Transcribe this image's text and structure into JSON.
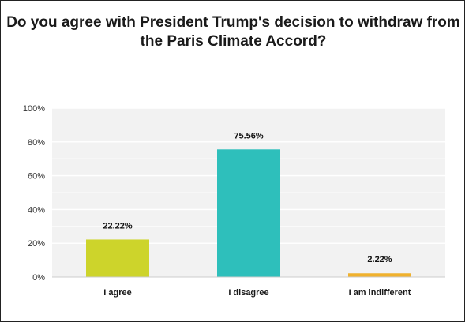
{
  "chart_data": {
    "type": "bar",
    "title": "Do you agree with President Trump's decision to withdraw from the Paris Climate Accord?",
    "categories": [
      "I agree",
      "I disagree",
      "I am indifferent"
    ],
    "values": [
      22.22,
      75.56,
      2.22
    ],
    "value_labels": [
      "22.22%",
      "75.56%",
      "2.22%"
    ],
    "colors": [
      "#cdd42b",
      "#2ebfbb",
      "#f0b12d"
    ],
    "yticks": [
      "0%",
      "20%",
      "40%",
      "60%",
      "80%",
      "100%"
    ],
    "ylim": [
      0,
      100
    ],
    "grid": true,
    "xlabel": "",
    "ylabel": ""
  }
}
